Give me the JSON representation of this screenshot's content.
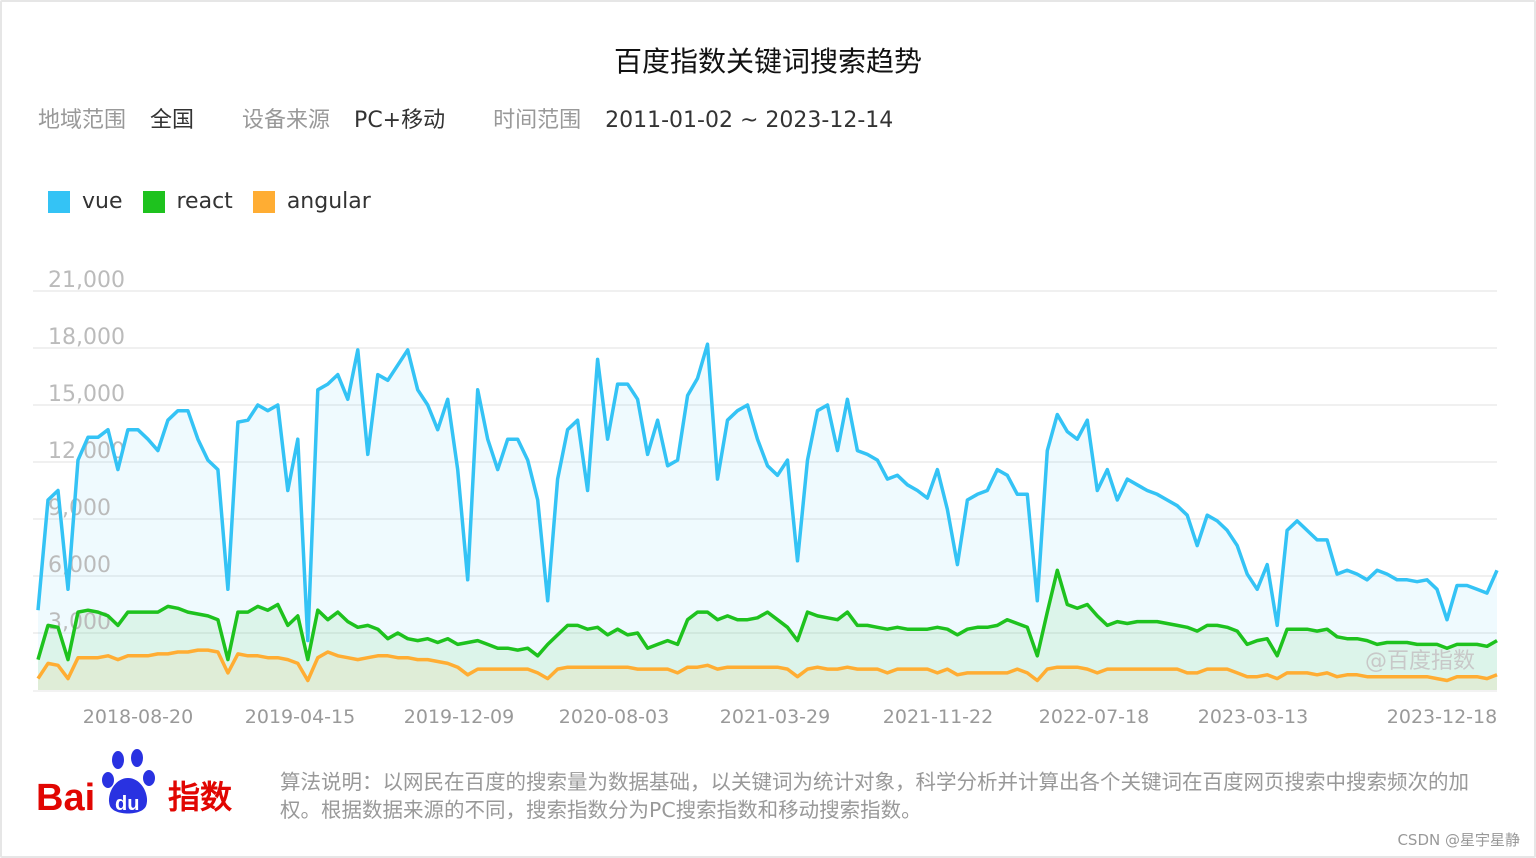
{
  "title": "百度指数关键词搜索趋势",
  "filters": [
    {
      "label": "地域范围",
      "value": "全国"
    },
    {
      "label": "设备来源",
      "value": "PC+移动"
    },
    {
      "label": "时间范围",
      "value": "2011-01-02 ~ 2023-12-14"
    }
  ],
  "watermark": "@百度指数",
  "footer": {
    "logo_text": "Baidu指数",
    "logo_bai": "Bai",
    "logo_du": "du",
    "logo_index": "指数",
    "note": "算法说明：以网民在百度的搜索量为数据基础，以关键词为统计对象，科学分析并计算出各个关键词在百度网页搜索中搜索频次的加权。根据数据来源的不同，搜索指数分为PC搜索指数和移动搜索指数。",
    "credit": "CSDN @星宇星静"
  },
  "colors": {
    "vue": "#34c3f5",
    "react": "#1ec21e",
    "angular": "#ffad33",
    "logo_red": "#e10602",
    "logo_blue": "#2932e1"
  },
  "chart_data": {
    "type": "area",
    "title": "",
    "xlabel": "",
    "ylabel": "",
    "ylim": [
      0,
      21000
    ],
    "y_ticks": [
      "21,000",
      "18,000",
      "15,000",
      "12,000",
      "9,000",
      "6,000",
      "3,000"
    ],
    "y_tick_values": [
      21000,
      18000,
      15000,
      12000,
      9000,
      6000,
      3000
    ],
    "x_tick_labels": [
      "2018-08-20",
      "2019-04-15",
      "2019-12-09",
      "2020-08-03",
      "2021-03-29",
      "2021-11-22",
      "2022-07-18",
      "2023-03-13",
      "2023-12-18"
    ],
    "grid": true,
    "legend": "top-left",
    "series": [
      {
        "name": "vue",
        "values": [
          4200,
          10000,
          10500,
          5300,
          12100,
          13300,
          13300,
          13700,
          11600,
          13700,
          13700,
          13200,
          12600,
          14200,
          14700,
          14700,
          13200,
          12100,
          11600,
          5300,
          14100,
          14200,
          15000,
          14700,
          15000,
          10500,
          13200,
          2600,
          15800,
          16100,
          16600,
          15300,
          17900,
          12400,
          16600,
          16300,
          17100,
          17900,
          15800,
          15000,
          13700,
          15300,
          11600,
          5800,
          15800,
          13200,
          11600,
          13200,
          13200,
          12100,
          10000,
          4700,
          11100,
          13700,
          14200,
          10500,
          17400,
          13200,
          16100,
          16100,
          15300,
          12400,
          14200,
          11800,
          12100,
          15500,
          16400,
          18200,
          11100,
          14200,
          14700,
          15000,
          13200,
          11800,
          11300,
          12100,
          6800,
          12100,
          14700,
          15000,
          12600,
          15300,
          12600,
          12400,
          12100,
          11100,
          11300,
          10800,
          10500,
          10100,
          11600,
          9500,
          6600,
          10000,
          10300,
          10500,
          11600,
          11300,
          10300,
          10300,
          4700,
          12600,
          14500,
          13600,
          13200,
          14200,
          10500,
          11600,
          10000,
          11100,
          10800,
          10500,
          10300,
          10000,
          9700,
          9200,
          7600,
          9200,
          8900,
          8400,
          7600,
          6100,
          5300,
          6600,
          3400,
          8400,
          8900,
          8400,
          7900,
          7900,
          6100,
          6300,
          6100,
          5800,
          6300,
          6100,
          5800,
          5800,
          5700,
          5800,
          5300,
          3700,
          5500,
          5500,
          5300,
          5100,
          6300
        ]
      },
      {
        "name": "react",
        "values": [
          1600,
          3400,
          3300,
          1600,
          4100,
          4200,
          4100,
          3900,
          3400,
          4100,
          4100,
          4100,
          4100,
          4400,
          4300,
          4100,
          4000,
          3900,
          3700,
          1600,
          4100,
          4100,
          4400,
          4200,
          4500,
          3400,
          3900,
          1600,
          4200,
          3700,
          4100,
          3600,
          3300,
          3400,
          3200,
          2700,
          3000,
          2700,
          2600,
          2700,
          2500,
          2700,
          2400,
          2500,
          2600,
          2400,
          2200,
          2200,
          2100,
          2200,
          1800,
          2400,
          2900,
          3400,
          3400,
          3200,
          3300,
          2900,
          3200,
          2900,
          3000,
          2200,
          2400,
          2600,
          2400,
          3700,
          4100,
          4100,
          3700,
          3900,
          3700,
          3700,
          3800,
          4100,
          3700,
          3300,
          2600,
          4100,
          3900,
          3800,
          3700,
          4100,
          3400,
          3400,
          3300,
          3200,
          3300,
          3200,
          3200,
          3200,
          3300,
          3200,
          2900,
          3200,
          3300,
          3300,
          3400,
          3700,
          3500,
          3300,
          1800,
          4100,
          6300,
          4500,
          4300,
          4500,
          3900,
          3400,
          3600,
          3500,
          3600,
          3600,
          3600,
          3500,
          3400,
          3300,
          3100,
          3400,
          3400,
          3300,
          3100,
          2400,
          2600,
          2700,
          1800,
          3200,
          3200,
          3200,
          3100,
          3200,
          2800,
          2700,
          2700,
          2600,
          2400,
          2500,
          2500,
          2500,
          2400,
          2400,
          2400,
          2200,
          2400,
          2400,
          2400,
          2300,
          2600
        ]
      },
      {
        "name": "angular",
        "values": [
          600,
          1400,
          1300,
          600,
          1700,
          1700,
          1700,
          1800,
          1600,
          1800,
          1800,
          1800,
          1900,
          1900,
          2000,
          2000,
          2100,
          2100,
          2000,
          900,
          1900,
          1800,
          1800,
          1700,
          1700,
          1600,
          1400,
          500,
          1700,
          2000,
          1800,
          1700,
          1600,
          1700,
          1800,
          1800,
          1700,
          1700,
          1600,
          1600,
          1500,
          1400,
          1200,
          800,
          1100,
          1100,
          1100,
          1100,
          1100,
          1100,
          900,
          600,
          1100,
          1200,
          1200,
          1200,
          1200,
          1200,
          1200,
          1200,
          1100,
          1100,
          1100,
          1100,
          900,
          1200,
          1200,
          1300,
          1100,
          1200,
          1200,
          1200,
          1200,
          1200,
          1200,
          1100,
          700,
          1100,
          1200,
          1100,
          1100,
          1200,
          1100,
          1100,
          1100,
          900,
          1100,
          1100,
          1100,
          1100,
          900,
          1100,
          800,
          900,
          900,
          900,
          900,
          900,
          1100,
          900,
          500,
          1100,
          1200,
          1200,
          1200,
          1100,
          900,
          1100,
          1100,
          1100,
          1100,
          1100,
          1100,
          1100,
          1100,
          900,
          900,
          1100,
          1100,
          1100,
          900,
          700,
          700,
          800,
          600,
          900,
          900,
          900,
          800,
          900,
          700,
          800,
          800,
          700,
          700,
          700,
          700,
          700,
          700,
          700,
          600,
          500,
          700,
          700,
          700,
          600,
          800
        ]
      }
    ]
  }
}
